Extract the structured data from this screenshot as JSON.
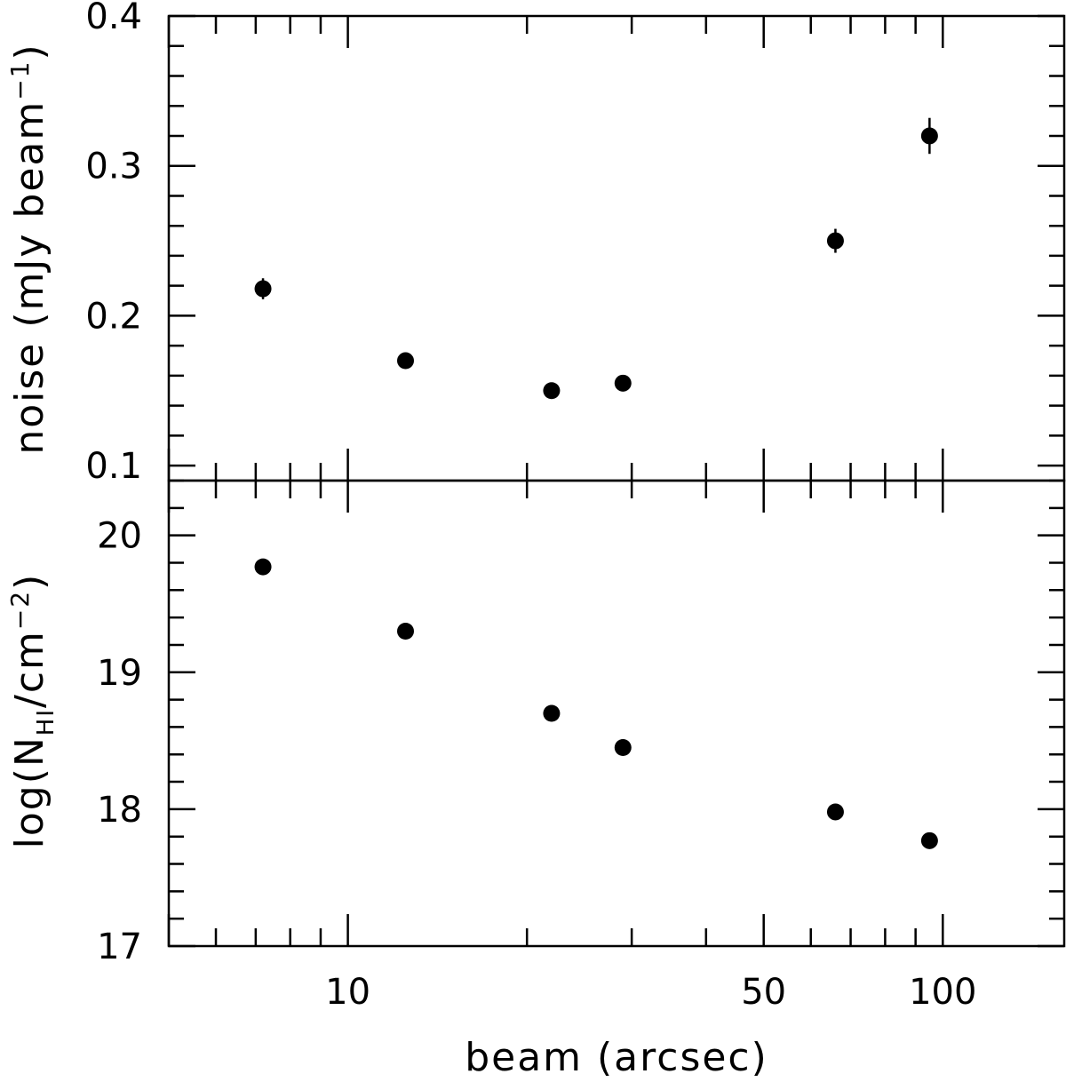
{
  "chart_data": [
    {
      "type": "scatter",
      "panel": "top",
      "ylabel": "noise (mJy beam",
      "ylabel_superscript": "−1",
      "ylabel_close": ")",
      "xscale": "log",
      "xlim": [
        5,
        160
      ],
      "ylim": [
        0.09,
        0.4
      ],
      "yticks": [
        0.1,
        0.2,
        0.3,
        0.4
      ],
      "yticklabels": [
        "0.1",
        "0.2",
        "0.3",
        "0.4"
      ],
      "yminor_step": 0.02,
      "x": [
        7.2,
        12.5,
        22,
        29,
        66,
        95
      ],
      "y": [
        0.218,
        0.17,
        0.15,
        0.155,
        0.25,
        0.32
      ],
      "yerr": [
        0.007,
        0.003,
        0.003,
        0.003,
        0.008,
        0.012
      ],
      "marker": "filled-circle",
      "color": "#000000",
      "grid": false
    },
    {
      "type": "scatter",
      "panel": "bottom",
      "ylabel_prefix": "log(N",
      "ylabel_sub": "HI",
      "ylabel_mid": "/cm",
      "ylabel_superscript": "−2",
      "ylabel_close": ")",
      "xlabel": "beam (arcsec)",
      "xscale": "log",
      "xlim": [
        5,
        160
      ],
      "xticks": [
        10,
        50,
        100
      ],
      "xticklabels": [
        "10",
        "50",
        "100"
      ],
      "ylim": [
        17,
        20.4
      ],
      "yticks": [
        17,
        18,
        19,
        20
      ],
      "yticklabels": [
        "17",
        "18",
        "19",
        "20"
      ],
      "yminor_step": 0.2,
      "x": [
        7.2,
        12.5,
        22,
        29,
        66,
        95
      ],
      "y": [
        19.77,
        19.3,
        18.7,
        18.45,
        17.98,
        17.77
      ],
      "marker": "filled-circle",
      "color": "#000000",
      "grid": false
    }
  ]
}
